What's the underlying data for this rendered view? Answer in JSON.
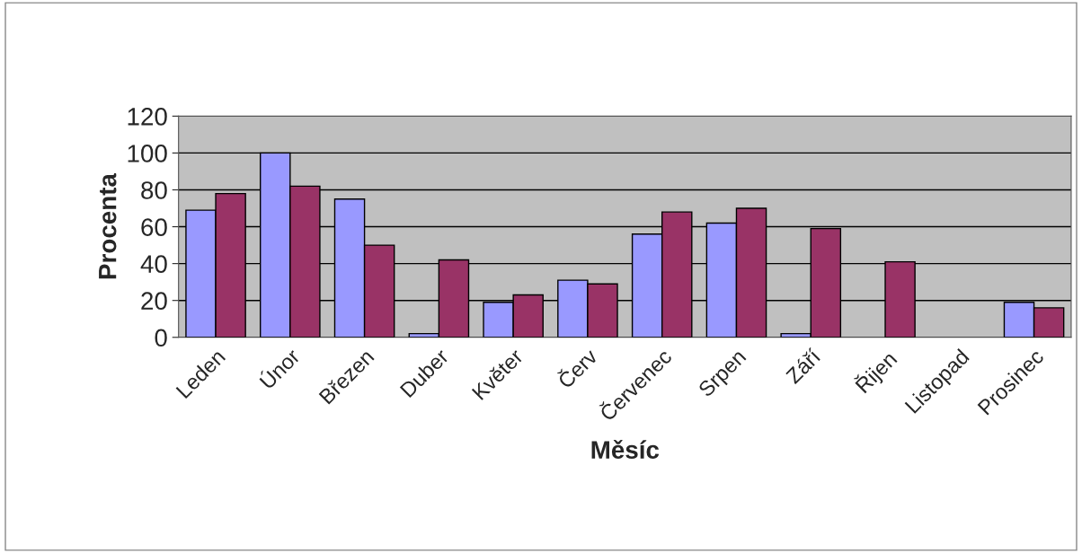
{
  "chart_data": {
    "type": "bar",
    "xlabel": "Měsíc",
    "ylabel": "Procenta",
    "categories": [
      "Leden",
      "Únor",
      "Březen",
      "Duber",
      "Květer",
      "Červ",
      "Červenec",
      "Srpen",
      "Září",
      "Řijen",
      "Listopad",
      "Prosinec"
    ],
    "series": [
      {
        "color": "#9999ff",
        "values": [
          69,
          100,
          75,
          2,
          19,
          31,
          56,
          62,
          2,
          null,
          null,
          19
        ]
      },
      {
        "color": "#993366",
        "values": [
          78,
          82,
          50,
          42,
          23,
          29,
          68,
          70,
          59,
          41,
          null,
          16
        ]
      }
    ],
    "ylim": [
      0,
      120
    ],
    "yticks": [
      0,
      20,
      40,
      60,
      80,
      100,
      120
    ],
    "grid": "y"
  }
}
